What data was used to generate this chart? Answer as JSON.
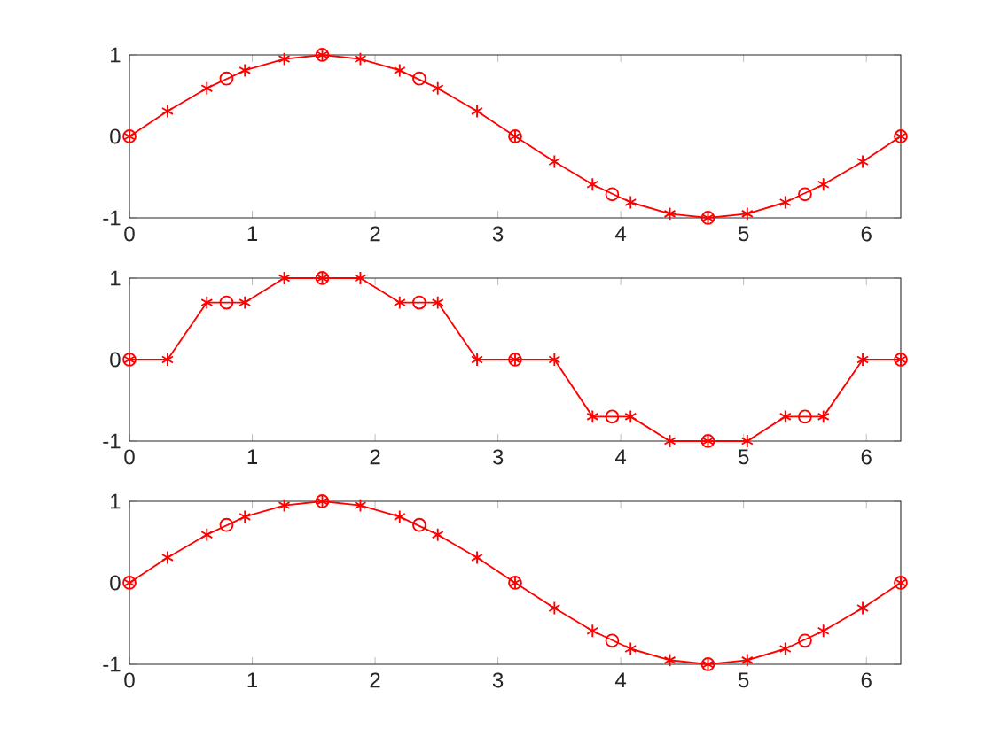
{
  "chart_data": [
    {
      "type": "line",
      "xlim": [
        0,
        6.28
      ],
      "ylim": [
        -1,
        1
      ],
      "xticks": [
        0,
        1,
        2,
        3,
        4,
        5,
        6
      ],
      "yticks": [
        -1,
        0,
        1
      ],
      "series": [
        {
          "type": "line",
          "color": "#ff0000",
          "marker": "cross",
          "x": [
            0,
            0.31,
            0.63,
            0.94,
            1.26,
            1.57,
            1.88,
            2.2,
            2.51,
            2.83,
            3.14,
            3.46,
            3.77,
            4.08,
            4.4,
            4.71,
            5.03,
            5.34,
            5.65,
            5.97,
            6.28
          ],
          "values": [
            0,
            0.31,
            0.59,
            0.81,
            0.95,
            1,
            0.95,
            0.81,
            0.59,
            0.31,
            0,
            -0.31,
            -0.59,
            -0.81,
            -0.95,
            -1,
            -0.95,
            -0.81,
            -0.59,
            -0.31,
            0
          ]
        },
        {
          "type": "scatter",
          "color": "#ff0000",
          "marker": "circle",
          "x": [
            0,
            0.79,
            1.57,
            2.36,
            3.14,
            3.93,
            4.71,
            5.5,
            6.28
          ],
          "values": [
            0,
            0.71,
            1,
            0.71,
            0,
            -0.71,
            -1,
            -0.71,
            0
          ]
        }
      ]
    },
    {
      "type": "line",
      "xlim": [
        0,
        6.28
      ],
      "ylim": [
        -1,
        1
      ],
      "xticks": [
        0,
        1,
        2,
        3,
        4,
        5,
        6
      ],
      "yticks": [
        -1,
        0,
        1
      ],
      "series": [
        {
          "type": "line",
          "color": "#ff0000",
          "marker": "cross",
          "x": [
            0,
            0.31,
            0.63,
            0.94,
            1.26,
            1.57,
            1.88,
            2.2,
            2.51,
            2.83,
            3.14,
            3.46,
            3.77,
            4.08,
            4.4,
            4.71,
            5.03,
            5.34,
            5.65,
            5.97,
            6.28
          ],
          "values": [
            0,
            0,
            0.7,
            0.7,
            1,
            1,
            1,
            0.7,
            0.7,
            0,
            0,
            0,
            -0.7,
            -0.7,
            -1,
            -1,
            -1,
            -0.7,
            -0.7,
            0,
            0
          ]
        },
        {
          "type": "scatter",
          "color": "#ff0000",
          "marker": "circle",
          "x": [
            0,
            0.79,
            1.57,
            2.36,
            3.14,
            3.93,
            4.71,
            5.5,
            6.28
          ],
          "values": [
            0,
            0.7,
            1,
            0.7,
            0,
            -0.7,
            -1,
            -0.7,
            0
          ]
        }
      ]
    },
    {
      "type": "line",
      "xlim": [
        0,
        6.28
      ],
      "ylim": [
        -1,
        1
      ],
      "xticks": [
        0,
        1,
        2,
        3,
        4,
        5,
        6
      ],
      "yticks": [
        -1,
        0,
        1
      ],
      "series": [
        {
          "type": "line",
          "color": "#ff0000",
          "marker": "cross",
          "x": [
            0,
            0.31,
            0.63,
            0.94,
            1.26,
            1.57,
            1.88,
            2.2,
            2.51,
            2.83,
            3.14,
            3.46,
            3.77,
            4.08,
            4.4,
            4.71,
            5.03,
            5.34,
            5.65,
            5.97,
            6.28
          ],
          "values": [
            0,
            0.31,
            0.59,
            0.81,
            0.95,
            1,
            0.95,
            0.81,
            0.59,
            0.31,
            0,
            -0.31,
            -0.59,
            -0.81,
            -0.95,
            -1,
            -0.95,
            -0.81,
            -0.59,
            -0.31,
            0
          ]
        },
        {
          "type": "scatter",
          "color": "#ff0000",
          "marker": "circle",
          "x": [
            0,
            0.79,
            1.57,
            2.36,
            3.14,
            3.93,
            4.71,
            5.5,
            6.28
          ],
          "values": [
            0,
            0.71,
            1,
            0.71,
            0,
            -0.71,
            -1,
            -0.71,
            0
          ]
        }
      ]
    }
  ]
}
